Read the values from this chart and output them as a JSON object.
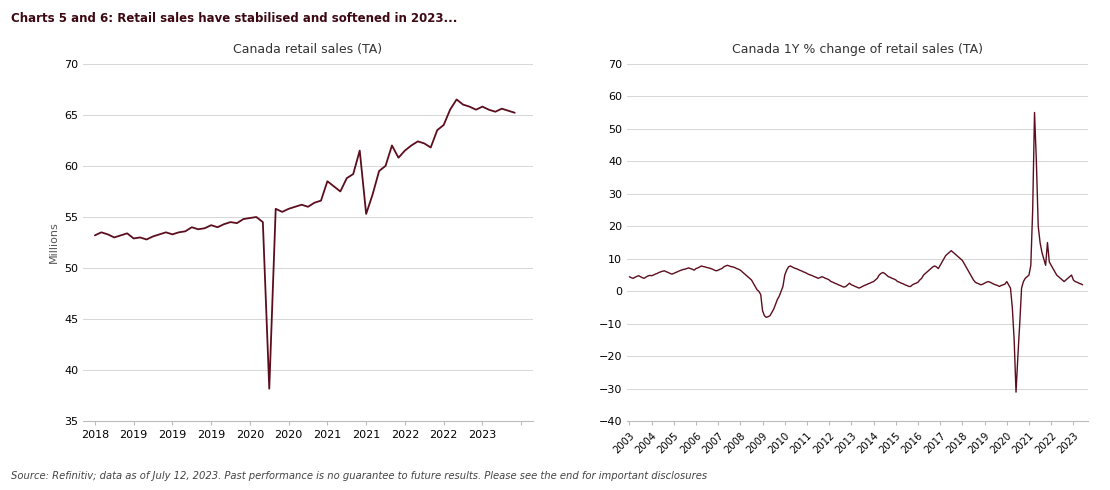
{
  "title_main": "Charts 5 and 6: Retail sales have stabilised and softened in 2023...",
  "title1": "Canada retail sales (TA)",
  "title2": "Canada 1Y % change of retail sales (TA)",
  "ylabel1": "Millions",
  "source_text": "Source: Refinitiv; data as of July 12, 2023. Past performance is no guarantee to future results. Please see the end for important disclosures",
  "line_color": "#5c0e1e",
  "bg_color": "#ffffff",
  "grid_color": "#d0d0d0",
  "chart1_ylim": [
    35,
    70
  ],
  "chart1_yticks": [
    35,
    40,
    45,
    50,
    55,
    60,
    65,
    70
  ],
  "chart2_ylim": [
    -40,
    70
  ],
  "chart2_yticks": [
    -40,
    -30,
    -20,
    -10,
    0,
    10,
    20,
    30,
    40,
    50,
    60,
    70
  ],
  "chart1_x": [
    2018.0,
    2018.083,
    2018.167,
    2018.25,
    2018.333,
    2018.417,
    2018.5,
    2018.583,
    2018.667,
    2018.75,
    2018.833,
    2018.917,
    2019.0,
    2019.083,
    2019.167,
    2019.25,
    2019.333,
    2019.417,
    2019.5,
    2019.583,
    2019.667,
    2019.75,
    2019.833,
    2019.917,
    2020.0,
    2020.083,
    2020.167,
    2020.25,
    2020.333,
    2020.417,
    2020.5,
    2020.583,
    2020.667,
    2020.75,
    2020.833,
    2020.917,
    2021.0,
    2021.083,
    2021.167,
    2021.25,
    2021.333,
    2021.417,
    2021.5,
    2021.583,
    2021.667,
    2021.75,
    2021.833,
    2021.917,
    2022.0,
    2022.083,
    2022.167,
    2022.25,
    2022.333,
    2022.417,
    2022.5,
    2022.583,
    2022.667,
    2022.75,
    2022.833,
    2022.917,
    2023.0,
    2023.083,
    2023.167,
    2023.25,
    2023.333,
    2023.417
  ],
  "chart1_y": [
    53.2,
    53.5,
    53.3,
    53.0,
    53.2,
    53.4,
    52.9,
    53.0,
    52.8,
    53.1,
    53.3,
    53.5,
    53.3,
    53.5,
    53.6,
    54.0,
    53.8,
    53.9,
    54.2,
    54.0,
    54.3,
    54.5,
    54.4,
    54.8,
    54.9,
    55.0,
    54.5,
    38.2,
    55.8,
    55.5,
    55.8,
    56.0,
    56.2,
    56.0,
    56.4,
    56.6,
    58.5,
    58.0,
    57.5,
    58.8,
    59.2,
    61.5,
    55.3,
    57.2,
    59.5,
    60.0,
    62.0,
    60.8,
    61.5,
    62.0,
    62.4,
    62.2,
    61.8,
    63.5,
    64.0,
    65.5,
    66.5,
    66.0,
    65.8,
    65.5,
    65.8,
    65.5,
    65.3,
    65.6,
    65.4,
    65.2
  ],
  "chart2_x": [
    2003.0,
    2003.083,
    2003.167,
    2003.25,
    2003.333,
    2003.417,
    2003.5,
    2003.583,
    2003.667,
    2003.75,
    2003.833,
    2003.917,
    2004.0,
    2004.083,
    2004.167,
    2004.25,
    2004.333,
    2004.417,
    2004.5,
    2004.583,
    2004.667,
    2004.75,
    2004.833,
    2004.917,
    2005.0,
    2005.083,
    2005.167,
    2005.25,
    2005.333,
    2005.417,
    2005.5,
    2005.583,
    2005.667,
    2005.75,
    2005.833,
    2005.917,
    2006.0,
    2006.083,
    2006.167,
    2006.25,
    2006.333,
    2006.417,
    2006.5,
    2006.583,
    2006.667,
    2006.75,
    2006.833,
    2006.917,
    2007.0,
    2007.083,
    2007.167,
    2007.25,
    2007.333,
    2007.417,
    2007.5,
    2007.583,
    2007.667,
    2007.75,
    2007.833,
    2007.917,
    2008.0,
    2008.083,
    2008.167,
    2008.25,
    2008.333,
    2008.417,
    2008.5,
    2008.583,
    2008.667,
    2008.75,
    2008.833,
    2008.917,
    2009.0,
    2009.083,
    2009.167,
    2009.25,
    2009.333,
    2009.417,
    2009.5,
    2009.583,
    2009.667,
    2009.75,
    2009.833,
    2009.917,
    2010.0,
    2010.083,
    2010.167,
    2010.25,
    2010.333,
    2010.417,
    2010.5,
    2010.583,
    2010.667,
    2010.75,
    2010.833,
    2010.917,
    2011.0,
    2011.083,
    2011.167,
    2011.25,
    2011.333,
    2011.417,
    2011.5,
    2011.583,
    2011.667,
    2011.75,
    2011.833,
    2011.917,
    2012.0,
    2012.083,
    2012.167,
    2012.25,
    2012.333,
    2012.417,
    2012.5,
    2012.583,
    2012.667,
    2012.75,
    2012.833,
    2012.917,
    2013.0,
    2013.083,
    2013.167,
    2013.25,
    2013.333,
    2013.417,
    2013.5,
    2013.583,
    2013.667,
    2013.75,
    2013.833,
    2013.917,
    2014.0,
    2014.083,
    2014.167,
    2014.25,
    2014.333,
    2014.417,
    2014.5,
    2014.583,
    2014.667,
    2014.75,
    2014.833,
    2014.917,
    2015.0,
    2015.083,
    2015.167,
    2015.25,
    2015.333,
    2015.417,
    2015.5,
    2015.583,
    2015.667,
    2015.75,
    2015.833,
    2015.917,
    2016.0,
    2016.083,
    2016.167,
    2016.25,
    2016.333,
    2016.417,
    2016.5,
    2016.583,
    2016.667,
    2016.75,
    2016.833,
    2016.917,
    2017.0,
    2017.083,
    2017.167,
    2017.25,
    2017.333,
    2017.417,
    2017.5,
    2017.583,
    2017.667,
    2017.75,
    2017.833,
    2017.917,
    2018.0,
    2018.083,
    2018.167,
    2018.25,
    2018.333,
    2018.417,
    2018.5,
    2018.583,
    2018.667,
    2018.75,
    2018.833,
    2018.917,
    2019.0,
    2019.083,
    2019.167,
    2019.25,
    2019.333,
    2019.417,
    2019.5,
    2019.583,
    2019.667,
    2019.75,
    2019.833,
    2019.917,
    2020.0,
    2020.083,
    2020.167,
    2020.25,
    2020.333,
    2020.417,
    2020.5,
    2020.583,
    2020.667,
    2020.75,
    2020.833,
    2020.917,
    2021.0,
    2021.083,
    2021.167,
    2021.25,
    2021.333,
    2021.417,
    2021.5,
    2021.583,
    2021.667,
    2021.75,
    2021.833,
    2021.917,
    2022.0,
    2022.083,
    2022.167,
    2022.25,
    2022.333,
    2022.417,
    2022.5,
    2022.583,
    2022.667,
    2022.75,
    2022.833,
    2022.917,
    2023.0,
    2023.083,
    2023.167,
    2023.25,
    2023.333,
    2023.417
  ],
  "chart2_y": [
    4.5,
    4.2,
    4.0,
    4.3,
    4.6,
    4.8,
    4.5,
    4.2,
    4.0,
    4.4,
    4.7,
    4.9,
    4.8,
    5.0,
    5.3,
    5.5,
    5.8,
    6.0,
    6.2,
    6.3,
    6.0,
    5.8,
    5.5,
    5.3,
    5.5,
    5.8,
    6.0,
    6.3,
    6.5,
    6.7,
    6.8,
    7.0,
    7.2,
    7.0,
    6.8,
    6.5,
    7.0,
    7.2,
    7.5,
    7.8,
    7.6,
    7.5,
    7.3,
    7.2,
    7.0,
    6.8,
    6.5,
    6.3,
    6.5,
    6.8,
    7.0,
    7.5,
    7.8,
    8.0,
    7.8,
    7.6,
    7.5,
    7.3,
    7.0,
    6.8,
    6.5,
    6.0,
    5.5,
    5.0,
    4.5,
    4.0,
    3.5,
    2.5,
    1.5,
    0.5,
    0.0,
    -1.0,
    -6.0,
    -7.5,
    -8.0,
    -7.8,
    -7.5,
    -6.5,
    -5.5,
    -4.0,
    -2.5,
    -1.5,
    0.0,
    1.5,
    5.0,
    6.5,
    7.5,
    7.8,
    7.5,
    7.2,
    7.0,
    6.8,
    6.5,
    6.3,
    6.0,
    5.8,
    5.5,
    5.2,
    5.0,
    4.8,
    4.5,
    4.3,
    4.0,
    4.2,
    4.5,
    4.3,
    4.0,
    3.8,
    3.5,
    3.0,
    2.8,
    2.5,
    2.3,
    2.0,
    1.8,
    1.5,
    1.3,
    1.5,
    2.0,
    2.5,
    2.0,
    1.8,
    1.5,
    1.3,
    1.0,
    1.2,
    1.5,
    1.8,
    2.0,
    2.3,
    2.5,
    2.8,
    3.0,
    3.5,
    4.0,
    5.0,
    5.5,
    5.8,
    5.5,
    5.0,
    4.5,
    4.3,
    4.0,
    3.8,
    3.5,
    3.0,
    2.8,
    2.5,
    2.3,
    2.0,
    1.8,
    1.5,
    1.5,
    2.0,
    2.3,
    2.5,
    2.8,
    3.5,
    4.0,
    5.0,
    5.5,
    6.0,
    6.5,
    7.0,
    7.5,
    7.8,
    7.5,
    7.0,
    8.0,
    9.0,
    10.0,
    11.0,
    11.5,
    12.0,
    12.5,
    12.0,
    11.5,
    11.0,
    10.5,
    10.0,
    9.5,
    8.5,
    7.5,
    6.5,
    5.5,
    4.5,
    3.5,
    2.8,
    2.5,
    2.3,
    2.0,
    2.2,
    2.5,
    2.8,
    3.0,
    2.8,
    2.5,
    2.2,
    2.0,
    1.8,
    1.5,
    1.8,
    2.0,
    2.2,
    3.0,
    2.0,
    1.0,
    -5.0,
    -15.0,
    -31.0,
    -20.0,
    -10.0,
    1.0,
    3.0,
    4.0,
    4.5,
    5.0,
    8.0,
    25.0,
    55.0,
    40.0,
    20.0,
    15.0,
    12.0,
    10.0,
    8.0,
    15.0,
    9.0,
    8.0,
    7.0,
    6.0,
    5.0,
    4.5,
    4.0,
    3.5,
    3.0,
    3.5,
    4.0,
    4.5,
    5.0,
    3.5,
    3.0,
    2.8,
    2.5,
    2.3,
    2.0
  ]
}
